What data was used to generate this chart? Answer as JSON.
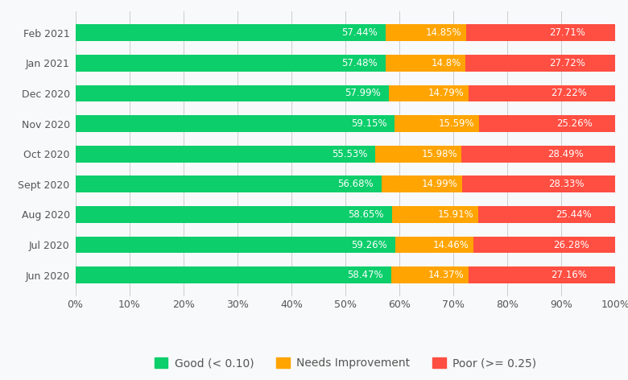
{
  "categories": [
    "Feb 2021",
    "Jan 2021",
    "Dec 2020",
    "Nov 2020",
    "Oct 2020",
    "Sept 2020",
    "Aug 2020",
    "Jul 2020",
    "Jun 2020"
  ],
  "good": [
    57.44,
    57.48,
    57.99,
    59.15,
    55.53,
    56.68,
    58.65,
    59.26,
    58.47
  ],
  "needs_improvement": [
    14.85,
    14.8,
    14.79,
    15.59,
    15.98,
    14.99,
    15.91,
    14.46,
    14.37
  ],
  "poor": [
    27.71,
    27.72,
    27.22,
    25.26,
    28.49,
    28.33,
    25.44,
    26.28,
    27.16
  ],
  "needs_labels": [
    "14.85%",
    "14.8%",
    "14.79%",
    "15.59%",
    "15.98%",
    "14.99%",
    "15.91%",
    "14.46%",
    "14.37%"
  ],
  "good_color": "#0CCE6B",
  "needs_color": "#FFA400",
  "poor_color": "#FF4E42",
  "good_label": "Good (< 0.10)",
  "needs_label": "Needs Improvement",
  "poor_label": "Poor (>= 0.25)",
  "bar_height": 0.55,
  "bg_color": "#f8f9fa",
  "plot_bg_color": "#f8f9fa",
  "text_color_inside": "#ffffff",
  "font_size_label": 8.5,
  "font_size_tick": 9,
  "font_size_legend": 10,
  "xlim": [
    0,
    100
  ],
  "xticks": [
    0,
    10,
    20,
    30,
    40,
    50,
    60,
    70,
    80,
    90,
    100
  ],
  "xtick_labels": [
    "0%",
    "10%",
    "20%",
    "30%",
    "40%",
    "50%",
    "60%",
    "70%",
    "80%",
    "90%",
    "100%"
  ]
}
